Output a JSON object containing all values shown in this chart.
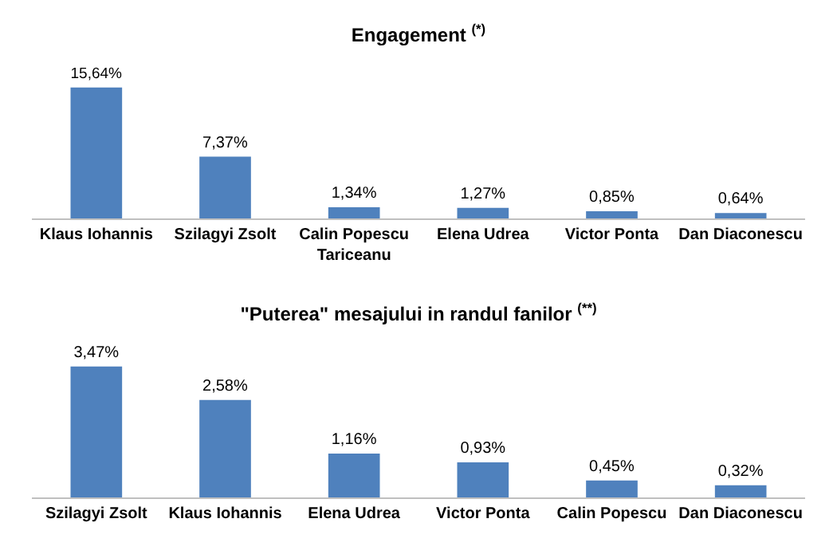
{
  "chart_data": [
    {
      "type": "bar",
      "title": "Engagement $^{(*)}$",
      "categories": [
        "Klaus Iohannis",
        "Szilagyi Zsolt",
        "Calin Popescu Tariceanu",
        "Elena Udrea",
        "Victor Ponta",
        "Dan Diaconescu"
      ],
      "values": [
        15.64,
        7.37,
        1.34,
        1.27,
        0.85,
        0.64
      ],
      "value_labels": [
        "15,64%",
        "7,37%",
        "1,34%",
        "1,27%",
        "0,85%",
        "0,64%"
      ],
      "color": "#4f81bd"
    },
    {
      "type": "bar",
      "title": "\"Puterea\" mesajului in randul fanilor $^{(**)}$",
      "categories": [
        "Szilagyi Zsolt",
        "Klaus Iohannis",
        "Elena Udrea",
        "Victor Ponta",
        "Calin Popescu",
        "Dan Diaconescu"
      ],
      "values": [
        3.47,
        2.58,
        1.16,
        0.93,
        0.45,
        0.32
      ],
      "value_labels": [
        "3,47%",
        "2,58%",
        "1,16%",
        "0,93%",
        "0,45%",
        "0,32%"
      ],
      "color": "#4f81bd"
    }
  ]
}
